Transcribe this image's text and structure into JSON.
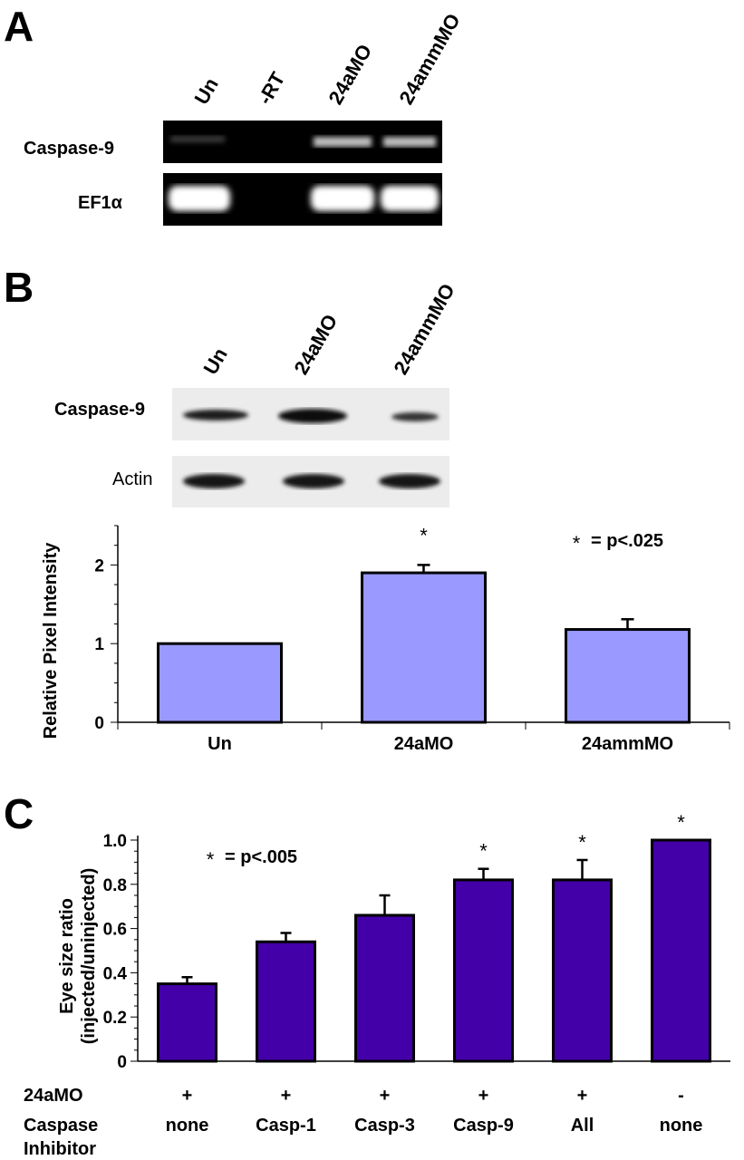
{
  "panels": {
    "a": "A",
    "b": "B",
    "c": "C"
  },
  "panel_a": {
    "lanes": [
      "Un",
      "-RT",
      "24aMO",
      "24ammMO"
    ],
    "rows": [
      "Caspase-9",
      "EF1α"
    ]
  },
  "panel_b": {
    "lanes": [
      "Un",
      "24aMO",
      "24ammMO"
    ],
    "rows": [
      "Caspase-9",
      "Actin"
    ]
  },
  "chart_data": [
    {
      "type": "bar",
      "categories": [
        "Un",
        "24aMO",
        "24ammMO"
      ],
      "values": [
        1.0,
        1.9,
        1.18
      ],
      "errors": [
        0,
        0.1,
        0.13
      ],
      "significant": [
        false,
        true,
        false
      ],
      "ylabel": "Relative Pixel Intensity",
      "yticks": [
        "0",
        "1",
        "2"
      ],
      "ylim": [
        0,
        2.5
      ],
      "annotation": "= p<.025",
      "star": "*",
      "bar_color": "#9999ff"
    },
    {
      "type": "bar",
      "categories": [
        "none",
        "Casp-1",
        "Casp-3",
        "Casp-9",
        "All",
        "none"
      ],
      "values": [
        0.35,
        0.54,
        0.66,
        0.82,
        0.82,
        1.0
      ],
      "errors": [
        0.03,
        0.04,
        0.09,
        0.05,
        0.09,
        0
      ],
      "significant": [
        false,
        false,
        false,
        true,
        true,
        true
      ],
      "ylabel": "Eye size ratio (injected/uninjected)",
      "yticks": [
        "0",
        "0.2",
        "0.4",
        "0.6",
        "0.8",
        "1.0"
      ],
      "ylim": [
        0,
        1.0
      ],
      "annotation": "= p<.005",
      "star": "*",
      "row1_label": "24aMO",
      "row1_values": [
        "+",
        "+",
        "+",
        "+",
        "+",
        "-"
      ],
      "row2_label": "Caspase Inhibitor",
      "bar_color": "#4400a8"
    }
  ]
}
